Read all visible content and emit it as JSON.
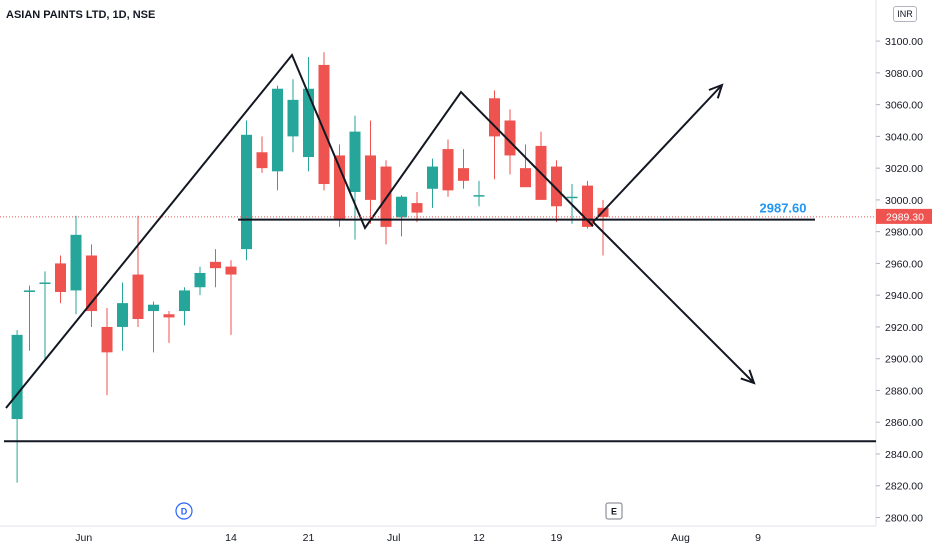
{
  "header": {
    "symbol_title": "ASIAN PAINTS LTD, 1D, NSE",
    "currency_badge": "INR"
  },
  "chart_data": {
    "type": "candlestick",
    "title": "ASIAN PAINTS LTD, 1D, NSE",
    "currency": "INR",
    "y_axis": {
      "ticks": [
        "2800.00",
        "2820.00",
        "2840.00",
        "2860.00",
        "2880.00",
        "2900.00",
        "2920.00",
        "2940.00",
        "2960.00",
        "2980.00",
        "3000.00",
        "3020.00",
        "3040.00",
        "3060.00",
        "3080.00",
        "3100.00"
      ],
      "range": [
        2798,
        3120
      ]
    },
    "x_axis": {
      "ticks": [
        {
          "label": "Jun",
          "x": 0.5
        },
        {
          "label": "14",
          "x": 10
        },
        {
          "label": "21",
          "x": 15
        },
        {
          "label": "Jul",
          "x": 20.5
        },
        {
          "label": "12",
          "x": 26
        },
        {
          "label": "19",
          "x": 31
        },
        {
          "label": "Aug",
          "x": 39
        },
        {
          "label": "9",
          "x": 44
        }
      ]
    },
    "last_price": "2989.30",
    "last_price_color": "#ef5350",
    "up_color": "#26a69a",
    "down_color": "#ef5350",
    "candles": [
      {
        "x": -3.8,
        "o": 2862,
        "h": 2918,
        "l": 2822,
        "c": 2915
      },
      {
        "x": -3,
        "o": 2942,
        "h": 2946,
        "l": 2905,
        "c": 2943
      },
      {
        "x": -2,
        "o": 2948,
        "h": 2955,
        "l": 2900,
        "c": 2948
      },
      {
        "x": -1,
        "o": 2960,
        "h": 2965,
        "l": 2935,
        "c": 2942
      },
      {
        "x": 0,
        "o": 2943,
        "h": 2990,
        "l": 2928,
        "c": 2978
      },
      {
        "x": 1,
        "o": 2965,
        "h": 2972,
        "l": 2920,
        "c": 2930
      },
      {
        "x": 2,
        "o": 2920,
        "h": 2932,
        "l": 2877,
        "c": 2904
      },
      {
        "x": 3,
        "o": 2920,
        "h": 2948,
        "l": 2905,
        "c": 2935
      },
      {
        "x": 4,
        "o": 2953,
        "h": 2990,
        "l": 2920,
        "c": 2925
      },
      {
        "x": 5,
        "o": 2930,
        "h": 2936,
        "l": 2904,
        "c": 2934
      },
      {
        "x": 6,
        "o": 2928,
        "h": 2930,
        "l": 2910,
        "c": 2926
      },
      {
        "x": 7,
        "o": 2930,
        "h": 2945,
        "l": 2921,
        "c": 2943
      },
      {
        "x": 8,
        "o": 2945,
        "h": 2958,
        "l": 2940,
        "c": 2954
      },
      {
        "x": 9,
        "o": 2961,
        "h": 2969,
        "l": 2945,
        "c": 2957
      },
      {
        "x": 10,
        "o": 2958,
        "h": 2962,
        "l": 2915,
        "c": 2953
      },
      {
        "x": 11,
        "o": 2969,
        "h": 3050,
        "l": 2962,
        "c": 3041
      },
      {
        "x": 12,
        "o": 3030,
        "h": 3040,
        "l": 3017,
        "c": 3020
      },
      {
        "x": 13,
        "o": 3018,
        "h": 3072,
        "l": 3006,
        "c": 3070
      },
      {
        "x": 14,
        "o": 3040,
        "h": 3076,
        "l": 3030,
        "c": 3063
      },
      {
        "x": 15,
        "o": 3027,
        "h": 3090,
        "l": 3018,
        "c": 3070
      },
      {
        "x": 16,
        "o": 3085,
        "h": 3093,
        "l": 3006,
        "c": 3010
      },
      {
        "x": 17,
        "o": 3028,
        "h": 3035,
        "l": 2983,
        "c": 2988
      },
      {
        "x": 18,
        "o": 3005,
        "h": 3053,
        "l": 2975,
        "c": 3043
      },
      {
        "x": 19,
        "o": 3028,
        "h": 3050,
        "l": 2985,
        "c": 3000
      },
      {
        "x": 20,
        "o": 3021,
        "h": 3025,
        "l": 2972,
        "c": 2983
      },
      {
        "x": 21,
        "o": 2989,
        "h": 3003,
        "l": 2977,
        "c": 3002
      },
      {
        "x": 22,
        "o": 2998,
        "h": 3005,
        "l": 2986,
        "c": 2992
      },
      {
        "x": 23,
        "o": 3007,
        "h": 3026,
        "l": 2995,
        "c": 3021
      },
      {
        "x": 24,
        "o": 3032,
        "h": 3038,
        "l": 3002,
        "c": 3006
      },
      {
        "x": 25,
        "o": 3020,
        "h": 3032,
        "l": 3007,
        "c": 3012
      },
      {
        "x": 26,
        "o": 3003,
        "h": 3012,
        "l": 2996,
        "c": 3003
      },
      {
        "x": 27,
        "o": 3064,
        "h": 3069,
        "l": 3013,
        "c": 3040
      },
      {
        "x": 28,
        "o": 3050,
        "h": 3057,
        "l": 3016,
        "c": 3028
      },
      {
        "x": 29,
        "o": 3020,
        "h": 3035,
        "l": 3010,
        "c": 3008
      },
      {
        "x": 30,
        "o": 3034,
        "h": 3043,
        "l": 3000,
        "c": 3000
      },
      {
        "x": 31,
        "o": 3021,
        "h": 3025,
        "l": 2986,
        "c": 2996
      },
      {
        "x": 32,
        "o": 3002,
        "h": 3010,
        "l": 2985,
        "c": 3002
      },
      {
        "x": 33,
        "o": 3009,
        "h": 3012,
        "l": 2982,
        "c": 2983
      },
      {
        "x": 34,
        "o": 2995,
        "h": 3000,
        "l": 2965,
        "c": 2989.3
      }
    ],
    "annotations": {
      "support_price_label": "2987.60",
      "support_price_value": 2987.6,
      "label_color": "#2196f3",
      "lower_support_value": 2848,
      "event_markers": [
        {
          "label": "D",
          "kind": "dividend"
        },
        {
          "label": "E",
          "kind": "earnings"
        }
      ]
    }
  }
}
